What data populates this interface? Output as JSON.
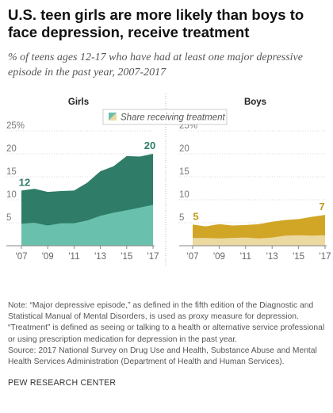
{
  "title": "U.S. teen girls are more likely than boys to face depression, receive treatment",
  "subtitle": "% of teens ages 12-17 who have had at least one major depressive episode in the past year, 2007-2017",
  "legend_label": "Share receiving treatment",
  "chart_data": [
    {
      "type": "area",
      "title": "Girls",
      "x": [
        2007,
        2008,
        2009,
        2010,
        2011,
        2012,
        2013,
        2014,
        2015,
        2016,
        2017
      ],
      "xticks": [
        "'07",
        "'09",
        "'11",
        "'13",
        "'15",
        "'17"
      ],
      "ylim": [
        0,
        25
      ],
      "yticks": [
        "25%",
        "20",
        "15",
        "10",
        "5"
      ],
      "series": [
        {
          "values": [
            12,
            12.4,
            11.7,
            11.9,
            12,
            13.7,
            16.2,
            17.3,
            19.5,
            19.4,
            20
          ],
          "color": "#2f7c69"
        },
        {
          "name": "Share receiving treatment",
          "values": [
            4.8,
            5.0,
            4.4,
            4.9,
            4.9,
            5.5,
            6.5,
            7.2,
            7.7,
            8.3,
            8.9
          ],
          "color": "#69c1ad"
        }
      ],
      "labels": {
        "first": "12",
        "last": "20"
      },
      "label_color": "#2f7c69"
    },
    {
      "type": "area",
      "title": "Boys",
      "x": [
        2007,
        2008,
        2009,
        2010,
        2011,
        2012,
        2013,
        2014,
        2015,
        2016,
        2017
      ],
      "xticks": [
        "'07",
        "'09",
        "'11",
        "'13",
        "'15",
        "'17"
      ],
      "ylim": [
        0,
        25
      ],
      "yticks": [
        "25%",
        "20",
        "15",
        "10",
        "5"
      ],
      "series": [
        {
          "values": [
            4.6,
            4.2,
            4.7,
            4.4,
            4.5,
            4.7,
            5.2,
            5.6,
            5.8,
            6.3,
            6.7
          ],
          "color": "#d1a626"
        },
        {
          "name": "Share receiving treatment",
          "values": [
            1.7,
            1.7,
            1.6,
            1.7,
            1.8,
            1.6,
            1.8,
            2.2,
            2.3,
            2.2,
            2.3
          ],
          "color": "#ecd9a0"
        }
      ],
      "labels": {
        "first": "5",
        "last": "7"
      },
      "label_color": "#c29a1c"
    }
  ],
  "notes": [
    "Note: “Major depressive episode,” as defined in the fifth edition of the Diagnostic and Statistical Manual of Mental Disorders, is used as proxy measure for depression. “Treatment” is defined as seeing or talking to a health or alternative service professional or using prescription medication for depression in the past year.",
    "Source: 2017 National Survey on Drug Use and Health, Substance Abuse and Mental Health Services Administration (Department of Health and Human Services)."
  ],
  "credit": "PEW RESEARCH CENTER"
}
